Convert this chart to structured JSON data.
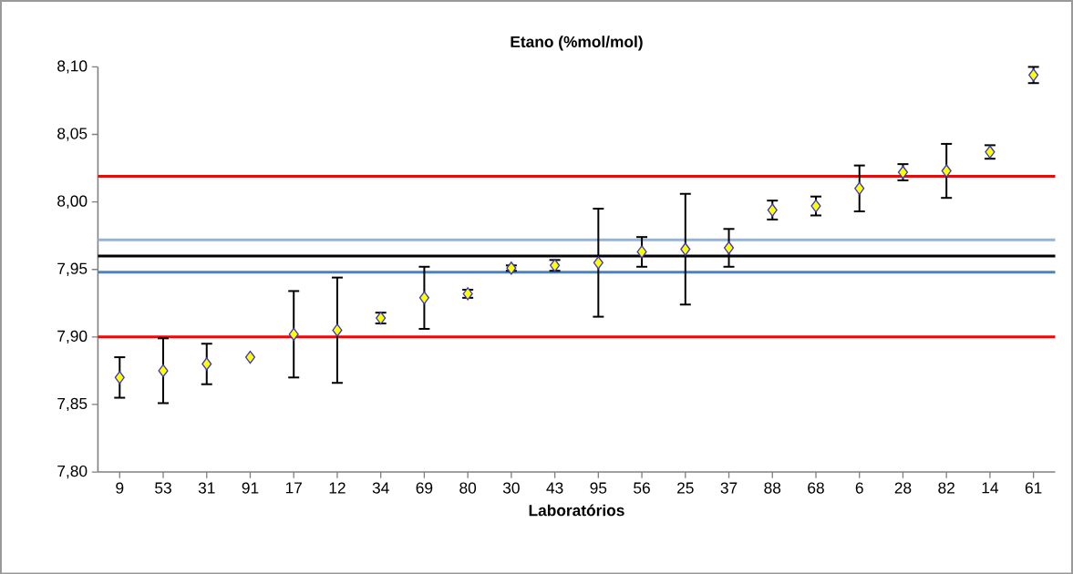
{
  "chart_data": {
    "type": "scatter",
    "title": "Etano (%mol/mol)",
    "xlabel": "Laboratórios",
    "categories": [
      "9",
      "53",
      "31",
      "91",
      "17",
      "12",
      "34",
      "69",
      "80",
      "30",
      "43",
      "95",
      "56",
      "25",
      "37",
      "88",
      "68",
      "6",
      "28",
      "82",
      "14",
      "61"
    ],
    "values": [
      7.87,
      7.875,
      7.88,
      7.885,
      7.902,
      7.905,
      7.914,
      7.929,
      7.932,
      7.951,
      7.953,
      7.955,
      7.963,
      7.965,
      7.966,
      7.994,
      7.997,
      8.01,
      8.022,
      8.023,
      8.037,
      8.094
    ],
    "errors": [
      0.015,
      0.024,
      0.015,
      null,
      0.032,
      0.039,
      0.004,
      0.023,
      0.003,
      0.002,
      0.004,
      0.04,
      0.011,
      0.041,
      0.014,
      0.007,
      0.007,
      0.017,
      0.006,
      0.02,
      0.005,
      0.006
    ],
    "color": "#ffff00",
    "marker": "diamond",
    "ylim": [
      7.8,
      8.1
    ],
    "yticks": [
      {
        "value": 7.8,
        "label": "7,80"
      },
      {
        "value": 7.85,
        "label": "7,85"
      },
      {
        "value": 7.9,
        "label": "7,90"
      },
      {
        "value": 7.95,
        "label": "7,95"
      },
      {
        "value": 8.0,
        "label": "8,00"
      },
      {
        "value": 8.05,
        "label": "8,05"
      },
      {
        "value": 8.1,
        "label": "8,10"
      }
    ],
    "ref_lines": [
      {
        "axis": "y",
        "value": 8.019,
        "color": "#ff0000"
      },
      {
        "axis": "y",
        "value": 7.9,
        "color": "#ff0000"
      },
      {
        "axis": "y",
        "value": 7.972,
        "color": "#95b3d7"
      },
      {
        "axis": "y",
        "value": 7.96,
        "color": "#000000"
      },
      {
        "axis": "y",
        "value": 7.948,
        "color": "#4f81bd"
      }
    ]
  }
}
